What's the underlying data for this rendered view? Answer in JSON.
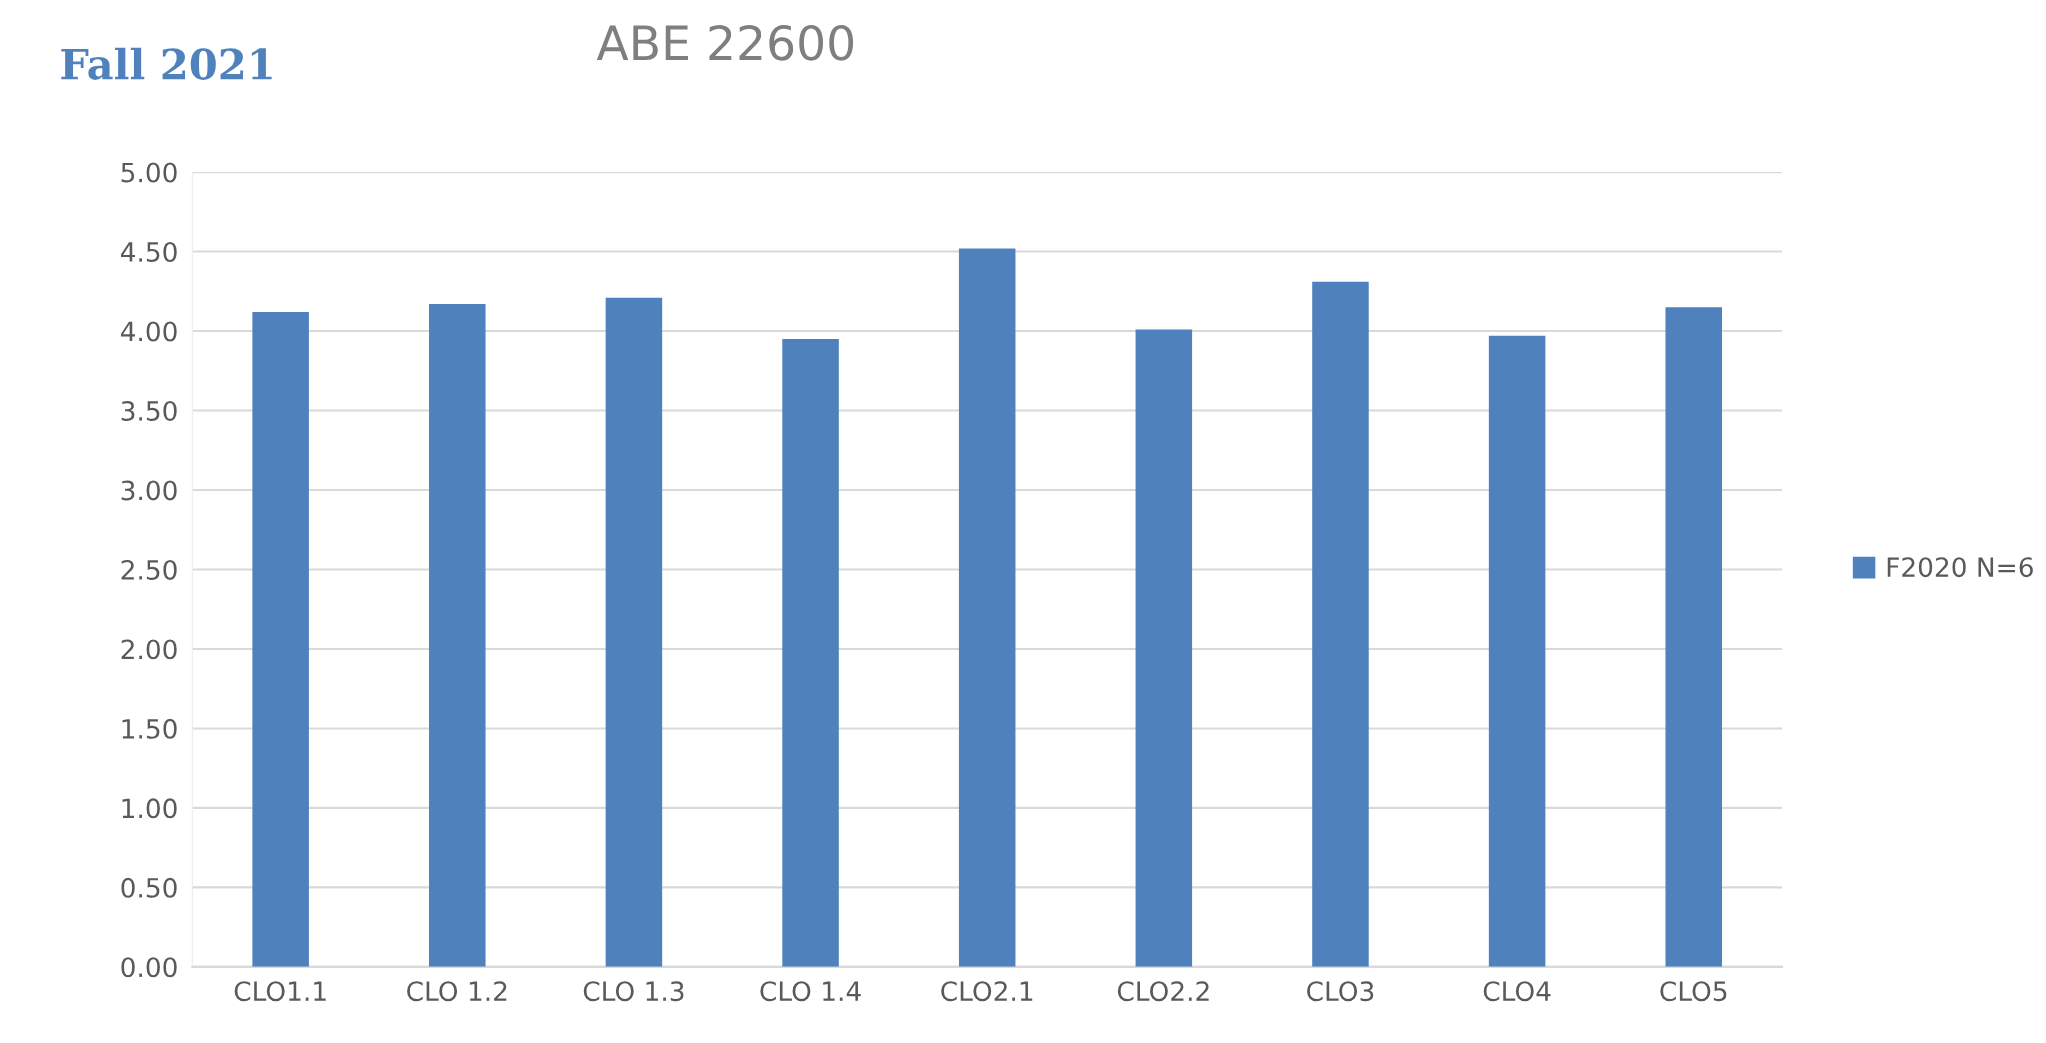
{
  "chart_data": {
    "type": "bar",
    "title": "ABE 22600",
    "subtitle": "Fall 2021",
    "categories": [
      "CLO1.1",
      "CLO 1.2",
      "CLO 1.3",
      "CLO 1.4",
      "CLO2.1",
      "CLO2.2",
      "CLO3",
      "CLO4",
      "CLO5"
    ],
    "series": [
      {
        "name": "F2020 N=6",
        "color": "#4f81bd",
        "values": [
          4.12,
          4.17,
          4.21,
          3.95,
          4.52,
          4.01,
          4.31,
          3.97,
          4.15
        ]
      }
    ],
    "ylim": [
      0,
      5
    ],
    "yticks": [
      {
        "value": 0,
        "label": "0.00"
      },
      {
        "value": 0.5,
        "label": "0.50"
      },
      {
        "value": 1,
        "label": "1.00"
      },
      {
        "value": 1.5,
        "label": "1.50"
      },
      {
        "value": 2,
        "label": "2.00"
      },
      {
        "value": 2.5,
        "label": "2.50"
      },
      {
        "value": 3,
        "label": "3.00"
      },
      {
        "value": 3.5,
        "label": "3.50"
      },
      {
        "value": 4,
        "label": "4.00"
      },
      {
        "value": 4.5,
        "label": "4.50"
      },
      {
        "value": 5,
        "label": "5.00"
      }
    ],
    "grid": "y",
    "legend": "right"
  }
}
